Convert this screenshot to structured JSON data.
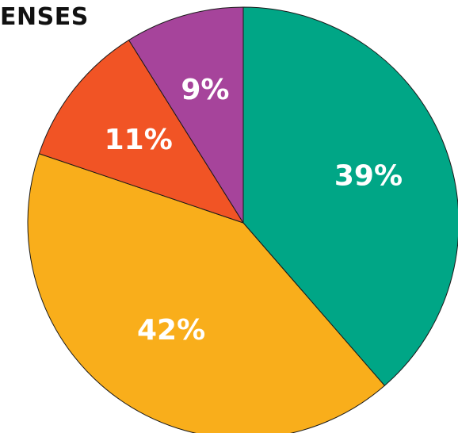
{
  "chart_data": {
    "type": "pie",
    "title": "ENSES",
    "slices": [
      {
        "label": "39%",
        "value": 39,
        "color": "#00a686"
      },
      {
        "label": "42%",
        "value": 42,
        "color": "#f9ae1b"
      },
      {
        "label": "11%",
        "value": 11,
        "color": "#f15425"
      },
      {
        "label": "9%",
        "value": 9,
        "color": "#a6449b"
      }
    ]
  }
}
